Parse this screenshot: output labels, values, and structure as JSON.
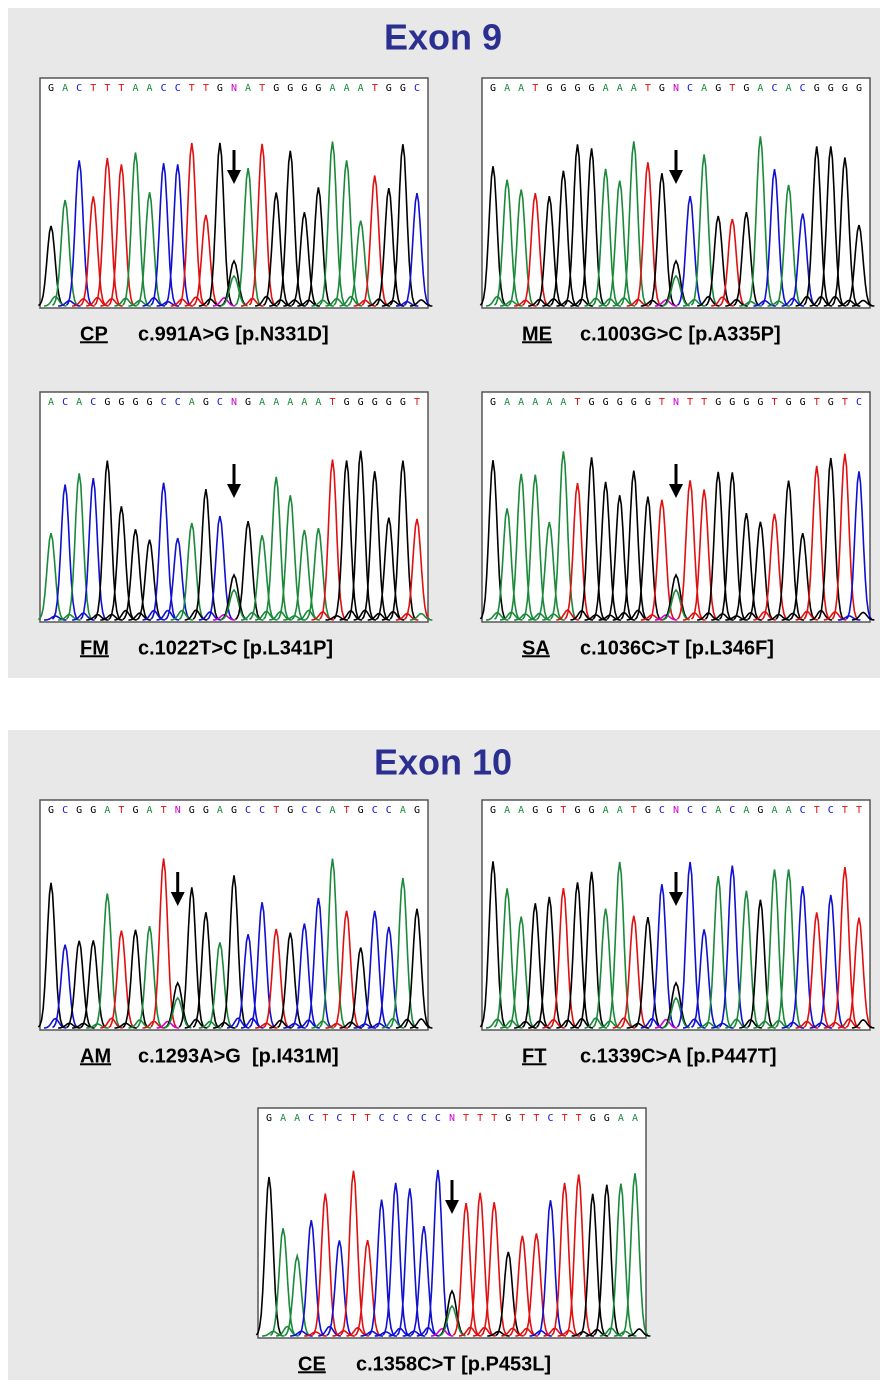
{
  "sections": [
    {
      "title": "Exon 9",
      "panels": [
        {
          "sequence": [
            "G",
            "A",
            "C",
            "T",
            "T",
            "T",
            "A",
            "A",
            "C",
            "C",
            "T",
            "T",
            "G",
            "N",
            "A",
            "T",
            "G",
            "G",
            "G",
            "G",
            "A",
            "A",
            "A",
            "T",
            "G",
            "G",
            "C"
          ],
          "patient": "CP",
          "mutation": "c.991A>G [p.N331D]"
        },
        {
          "sequence": [
            "G",
            "A",
            "A",
            "T",
            "G",
            "G",
            "G",
            "G",
            "A",
            "A",
            "A",
            "T",
            "G",
            "N",
            "C",
            "A",
            "G",
            "T",
            "G",
            "A",
            "C",
            "A",
            "C",
            "G",
            "G",
            "G",
            "G"
          ],
          "patient": "ME",
          "mutation": "c.1003G>C [p.A335P]"
        },
        {
          "sequence": [
            "A",
            "C",
            "A",
            "C",
            "G",
            "G",
            "G",
            "G",
            "C",
            "C",
            "A",
            "G",
            "C",
            "N",
            "G",
            "A",
            "A",
            "A",
            "A",
            "A",
            "T",
            "G",
            "G",
            "G",
            "G",
            "G",
            "T"
          ],
          "patient": "FM",
          "mutation": "c.1022T>C [p.L341P]"
        },
        {
          "sequence": [
            "G",
            "A",
            "A",
            "A",
            "A",
            "A",
            "T",
            "G",
            "G",
            "G",
            "G",
            "G",
            "T",
            "N",
            "T",
            "T",
            "G",
            "G",
            "G",
            "G",
            "T",
            "G",
            "G",
            "T",
            "G",
            "T",
            "C"
          ],
          "patient": "SA",
          "mutation": "c.1036C>T [p.L346F]"
        }
      ]
    },
    {
      "title": "Exon 10",
      "panels": [
        {
          "sequence": [
            "G",
            "C",
            "G",
            "G",
            "A",
            "T",
            "G",
            "A",
            "T",
            "N",
            "G",
            "G",
            "A",
            "G",
            "C",
            "C",
            "T",
            "G",
            "C",
            "C",
            "A",
            "T",
            "G",
            "C",
            "C",
            "A",
            "G"
          ],
          "patient": "AM",
          "mutation": "c.1293A>G  [p.I431M]"
        },
        {
          "sequence": [
            "G",
            "A",
            "A",
            "G",
            "G",
            "T",
            "G",
            "G",
            "A",
            "A",
            "T",
            "G",
            "C",
            "N",
            "C",
            "C",
            "A",
            "C",
            "A",
            "G",
            "A",
            "A",
            "C",
            "T",
            "C",
            "T",
            "T"
          ],
          "patient": "FT",
          "mutation": "c.1339C>A [p.P447T]"
        },
        {
          "sequence": [
            "G",
            "A",
            "A",
            "C",
            "T",
            "C",
            "T",
            "T",
            "C",
            "C",
            "C",
            "C",
            "C",
            "N",
            "T",
            "T",
            "T",
            "G",
            "T",
            "T",
            "C",
            "T",
            "T",
            "G",
            "G",
            "A",
            "A"
          ],
          "patient": "CE",
          "mutation": "c.1358C>T [p.P453L]"
        }
      ]
    }
  ]
}
